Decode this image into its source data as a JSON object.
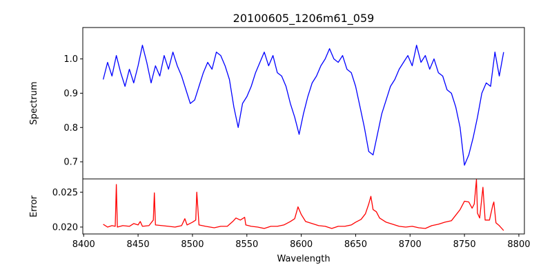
{
  "chart_data": [
    {
      "type": "line",
      "title": "20100605_1206m61_059",
      "xlabel": "",
      "ylabel": "Spectrum",
      "xlim": [
        8399.2,
        8805.1
      ],
      "ylim": [
        0.65,
        1.0916
      ],
      "xticks": [
        8400,
        8450,
        8500,
        8550,
        8600,
        8650,
        8700,
        8750,
        8800
      ],
      "yticks": [
        0.7,
        0.8,
        0.9,
        1.0
      ],
      "ytick_labels": [
        "0.7",
        "0.8",
        "0.9",
        "1.0"
      ],
      "grid": false,
      "color": "#0000ff",
      "series": [
        {
          "name": "Spectrum",
          "x": [
            8418,
            8422,
            8426,
            8430,
            8434,
            8438,
            8442,
            8446,
            8450,
            8454,
            8458,
            8462,
            8466,
            8470,
            8474,
            8478,
            8482,
            8486,
            8490,
            8494,
            8498,
            8502,
            8506,
            8510,
            8514,
            8518,
            8522,
            8526,
            8530,
            8534,
            8538,
            8542,
            8546,
            8550,
            8554,
            8558,
            8562,
            8566,
            8570,
            8574,
            8578,
            8582,
            8586,
            8590,
            8594,
            8598,
            8602,
            8606,
            8610,
            8614,
            8618,
            8622,
            8626,
            8630,
            8634,
            8638,
            8642,
            8646,
            8650,
            8654,
            8658,
            8662,
            8666,
            8670,
            8674,
            8678,
            8682,
            8686,
            8690,
            8694,
            8698,
            8702,
            8706,
            8710,
            8714,
            8718,
            8722,
            8726,
            8730,
            8734,
            8738,
            8742,
            8746,
            8750,
            8754,
            8758,
            8762,
            8766,
            8770,
            8774,
            8778,
            8782,
            8786
          ],
          "y": [
            0.94,
            0.99,
            0.95,
            1.01,
            0.96,
            0.92,
            0.97,
            0.93,
            0.98,
            1.04,
            0.99,
            0.93,
            0.98,
            0.95,
            1.01,
            0.97,
            1.02,
            0.98,
            0.95,
            0.91,
            0.87,
            0.88,
            0.92,
            0.96,
            0.99,
            0.97,
            1.02,
            1.01,
            0.98,
            0.94,
            0.86,
            0.8,
            0.87,
            0.89,
            0.92,
            0.96,
            0.99,
            1.02,
            0.98,
            1.01,
            0.96,
            0.95,
            0.92,
            0.87,
            0.83,
            0.78,
            0.84,
            0.89,
            0.93,
            0.95,
            0.98,
            1.0,
            1.03,
            1.0,
            0.99,
            1.01,
            0.97,
            0.96,
            0.92,
            0.86,
            0.8,
            0.73,
            0.72,
            0.78,
            0.84,
            0.88,
            0.92,
            0.94,
            0.97,
            0.99,
            1.01,
            0.98,
            1.04,
            0.99,
            1.01,
            0.97,
            1.0,
            0.96,
            0.95,
            0.91,
            0.9,
            0.86,
            0.8,
            0.69,
            0.72,
            0.77,
            0.83,
            0.9,
            0.93,
            0.92,
            1.02,
            0.95,
            1.02
          ]
        }
      ]
    },
    {
      "type": "line",
      "title": "",
      "xlabel": "Wavelength",
      "ylabel": "Error",
      "xlim": [
        8399.2,
        8805.1
      ],
      "ylim": [
        0.01901,
        0.0269
      ],
      "xticks": [
        8400,
        8450,
        8500,
        8550,
        8600,
        8650,
        8700,
        8750,
        8800
      ],
      "xtick_labels": [
        "8400",
        "8450",
        "8500",
        "8550",
        "8600",
        "8650",
        "8700",
        "8750",
        "8800"
      ],
      "yticks": [
        0.02,
        0.025
      ],
      "ytick_labels": [
        "0.020",
        "0.025"
      ],
      "grid": false,
      "color": "#ff0000",
      "series": [
        {
          "name": "Error",
          "x": [
            8418,
            8422,
            8426,
            8429,
            8430,
            8431,
            8436,
            8442,
            8446,
            8450,
            8452,
            8454,
            8460,
            8464,
            8465,
            8466,
            8472,
            8478,
            8484,
            8490,
            8493,
            8495,
            8500,
            8503,
            8504,
            8506,
            8512,
            8520,
            8526,
            8532,
            8537,
            8540,
            8544,
            8548,
            8549,
            8554,
            8560,
            8566,
            8572,
            8578,
            8584,
            8590,
            8594,
            8597,
            8600,
            8604,
            8610,
            8616,
            8622,
            8628,
            8634,
            8640,
            8646,
            8650,
            8655,
            8659,
            8662,
            8664,
            8666,
            8669,
            8672,
            8678,
            8684,
            8690,
            8696,
            8702,
            8708,
            8714,
            8720,
            8726,
            8732,
            8738,
            8742,
            8746,
            8750,
            8754,
            8757,
            8759,
            8761,
            8762,
            8764,
            8767,
            8769,
            8773,
            8776,
            8777,
            8779,
            8782,
            8786
          ],
          "y": [
            0.0204,
            0.02,
            0.0202,
            0.0201,
            0.0261,
            0.02,
            0.0202,
            0.0201,
            0.0205,
            0.0203,
            0.0208,
            0.0201,
            0.0202,
            0.021,
            0.0249,
            0.0203,
            0.0202,
            0.0201,
            0.02,
            0.0202,
            0.0212,
            0.0203,
            0.0207,
            0.021,
            0.025,
            0.0203,
            0.0201,
            0.0199,
            0.0201,
            0.0201,
            0.0208,
            0.0213,
            0.021,
            0.0214,
            0.0203,
            0.0201,
            0.02,
            0.0198,
            0.0201,
            0.0201,
            0.0203,
            0.0208,
            0.0212,
            0.0229,
            0.0218,
            0.0208,
            0.0205,
            0.0202,
            0.0201,
            0.0198,
            0.0201,
            0.0201,
            0.0203,
            0.0207,
            0.0211,
            0.0219,
            0.0233,
            0.0244,
            0.0225,
            0.0222,
            0.0213,
            0.0207,
            0.0204,
            0.0201,
            0.02,
            0.0201,
            0.0199,
            0.0198,
            0.0202,
            0.0204,
            0.0207,
            0.0209,
            0.0217,
            0.0225,
            0.0237,
            0.0236,
            0.0227,
            0.0233,
            0.0268,
            0.022,
            0.0213,
            0.0257,
            0.021,
            0.021,
            0.0231,
            0.0236,
            0.0206,
            0.0202,
            0.0195
          ]
        }
      ]
    }
  ]
}
